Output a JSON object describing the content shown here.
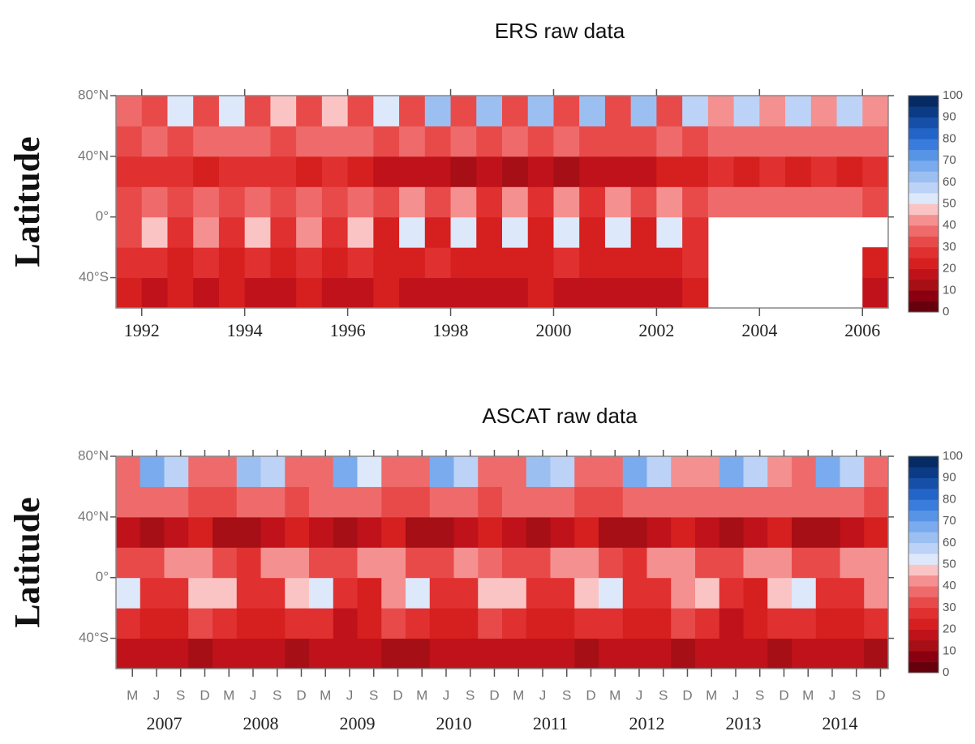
{
  "chart_data": [
    {
      "type": "heatmap",
      "title": "ERS raw data",
      "ylabel": "Latitude",
      "xlim": [
        1991.5,
        2006.5
      ],
      "ylim": [
        -60,
        80
      ],
      "xticks": [
        1992,
        1994,
        1996,
        1998,
        2000,
        2002,
        2004,
        2006
      ],
      "yticks": [
        {
          "value": 80,
          "label": "80°N"
        },
        {
          "value": 40,
          "label": "40°N"
        },
        {
          "value": 0,
          "label": "0°"
        },
        {
          "value": -40,
          "label": "40°S"
        }
      ],
      "xbins": [
        1991.5,
        1992,
        1992.5,
        1993,
        1993.5,
        1994,
        1994.5,
        1995,
        1995.5,
        1996,
        1996.5,
        1997,
        1997.5,
        1998,
        1998.5,
        1999,
        1999.5,
        2000,
        2000.5,
        2001,
        2001.5,
        2002,
        2002.5,
        2003,
        2003.5,
        2004,
        2004.5,
        2005,
        2005.5,
        2006,
        2006.5
      ],
      "ybins": [
        -60,
        -40,
        -20,
        0,
        20,
        40,
        60,
        80
      ],
      "values": [
        [
          22,
          18,
          20,
          17,
          21,
          19,
          18,
          20,
          17,
          19,
          21,
          18,
          16,
          19,
          18,
          17,
          20,
          16,
          18,
          19,
          17,
          18,
          20,
          null,
          null,
          null,
          null,
          null,
          null,
          15
        ],
        [
          25,
          28,
          22,
          27,
          24,
          26,
          23,
          25,
          22,
          27,
          24,
          21,
          25,
          23,
          22,
          24,
          21,
          26,
          23,
          20,
          24,
          22,
          25,
          null,
          null,
          null,
          null,
          null,
          null,
          22
        ],
        [
          30,
          45,
          28,
          44,
          27,
          45,
          26,
          44,
          25,
          46,
          24,
          50,
          22,
          52,
          23,
          50,
          22,
          51,
          22,
          52,
          24,
          50,
          26,
          null,
          null,
          null,
          null,
          null,
          null,
          null
        ],
        [
          30,
          38,
          32,
          36,
          30,
          37,
          31,
          36,
          30,
          38,
          33,
          40,
          30,
          41,
          29,
          40,
          28,
          41,
          29,
          42,
          30,
          40,
          31,
          36,
          38,
          36,
          37,
          35,
          36,
          33
        ],
        [
          28,
          25,
          27,
          24,
          26,
          25,
          27,
          24,
          25,
          22,
          18,
          15,
          17,
          14,
          16,
          13,
          15,
          14,
          17,
          15,
          18,
          20,
          22,
          25,
          24,
          26,
          23,
          25,
          24,
          26
        ],
        [
          34,
          36,
          33,
          37,
          35,
          36,
          34,
          38,
          35,
          37,
          33,
          36,
          32,
          35,
          33,
          36,
          34,
          35,
          32,
          34,
          33,
          35,
          34,
          38,
          36,
          37,
          35,
          38,
          36,
          37
        ],
        [
          35,
          30,
          52,
          32,
          50,
          30,
          48,
          31,
          47,
          30,
          50,
          32,
          60,
          33,
          60,
          32,
          62,
          33,
          60,
          32,
          62,
          33,
          58,
          42,
          55,
          40,
          57,
          41,
          56,
          40
        ]
      ],
      "clim": [
        0,
        100
      ],
      "colors": [
        "#67000d",
        "#8b0010",
        "#a50f15",
        "#c0121a",
        "#d61f1f",
        "#e03030",
        "#e84a4a",
        "#ef6b6b",
        "#f59090",
        "#fbc4c4",
        "#dde8fb",
        "#bcd3f7",
        "#9cbff2",
        "#7aabee",
        "#5894e6",
        "#3a7cdc",
        "#2264c8",
        "#164fa8",
        "#0c3b86",
        "#062a62"
      ],
      "colorbar_ticks": [
        0,
        10,
        20,
        30,
        40,
        50,
        60,
        70,
        80,
        90,
        100
      ]
    },
    {
      "type": "heatmap",
      "title": "ASCAT raw data",
      "ylabel": "Latitude",
      "xlim": [
        2007,
        2015
      ],
      "ylim": [
        -60,
        80
      ],
      "xticks": [
        {
          "value": 2007.17,
          "label": "M"
        },
        {
          "value": 2007.42,
          "label": "J"
        },
        {
          "value": 2007.67,
          "label": "S"
        },
        {
          "value": 2007.92,
          "label": "D"
        },
        {
          "value": 2008.17,
          "label": "M"
        },
        {
          "value": 2008.42,
          "label": "J"
        },
        {
          "value": 2008.67,
          "label": "S"
        },
        {
          "value": 2008.92,
          "label": "D"
        },
        {
          "value": 2009.17,
          "label": "M"
        },
        {
          "value": 2009.42,
          "label": "J"
        },
        {
          "value": 2009.67,
          "label": "S"
        },
        {
          "value": 2009.92,
          "label": "D"
        },
        {
          "value": 2010.17,
          "label": "M"
        },
        {
          "value": 2010.42,
          "label": "J"
        },
        {
          "value": 2010.67,
          "label": "S"
        },
        {
          "value": 2010.92,
          "label": "D"
        },
        {
          "value": 2011.17,
          "label": "M"
        },
        {
          "value": 2011.42,
          "label": "J"
        },
        {
          "value": 2011.67,
          "label": "S"
        },
        {
          "value": 2011.92,
          "label": "D"
        },
        {
          "value": 2012.17,
          "label": "M"
        },
        {
          "value": 2012.42,
          "label": "J"
        },
        {
          "value": 2012.67,
          "label": "S"
        },
        {
          "value": 2012.92,
          "label": "D"
        },
        {
          "value": 2013.17,
          "label": "M"
        },
        {
          "value": 2013.42,
          "label": "J"
        },
        {
          "value": 2013.67,
          "label": "S"
        },
        {
          "value": 2013.92,
          "label": "D"
        },
        {
          "value": 2014.17,
          "label": "M"
        },
        {
          "value": 2014.42,
          "label": "J"
        },
        {
          "value": 2014.67,
          "label": "S"
        },
        {
          "value": 2014.92,
          "label": "D"
        }
      ],
      "year_ticks": [
        {
          "value": 2007.5,
          "label": "2007"
        },
        {
          "value": 2008.5,
          "label": "2008"
        },
        {
          "value": 2009.5,
          "label": "2009"
        },
        {
          "value": 2010.5,
          "label": "2010"
        },
        {
          "value": 2011.5,
          "label": "2011"
        },
        {
          "value": 2012.5,
          "label": "2012"
        },
        {
          "value": 2013.5,
          "label": "2013"
        },
        {
          "value": 2014.5,
          "label": "2014"
        }
      ],
      "yticks": [
        {
          "value": 80,
          "label": "80°N"
        },
        {
          "value": 40,
          "label": "40°N"
        },
        {
          "value": 0,
          "label": "0°"
        },
        {
          "value": -40,
          "label": "40°S"
        }
      ],
      "xbins": [
        2007,
        2007.25,
        2007.5,
        2007.75,
        2008,
        2008.25,
        2008.5,
        2008.75,
        2009,
        2009.25,
        2009.5,
        2009.75,
        2010,
        2010.25,
        2010.5,
        2010.75,
        2011,
        2011.25,
        2011.5,
        2011.75,
        2012,
        2012.25,
        2012.5,
        2012.75,
        2013,
        2013.25,
        2013.5,
        2013.75,
        2014,
        2014.25,
        2014.5,
        2014.75,
        2015
      ],
      "ybins": [
        -60,
        -40,
        -20,
        0,
        20,
        40,
        60,
        80
      ],
      "values": [
        [
          15,
          18,
          16,
          14,
          16,
          17,
          15,
          13,
          15,
          18,
          16,
          14,
          14,
          17,
          16,
          15,
          16,
          18,
          15,
          14,
          15,
          17,
          16,
          13,
          15,
          18,
          17,
          14,
          16,
          17,
          15,
          14
        ],
        [
          28,
          20,
          22,
          30,
          27,
          21,
          23,
          29,
          28,
          19,
          22,
          31,
          26,
          20,
          24,
          30,
          27,
          21,
          22,
          29,
          28,
          20,
          23,
          30,
          27,
          19,
          22,
          28,
          26,
          21,
          24,
          29
        ],
        [
          50,
          28,
          25,
          45,
          49,
          27,
          26,
          46,
          51,
          28,
          24,
          44,
          50,
          27,
          25,
          45,
          48,
          28,
          26,
          46,
          50,
          27,
          25,
          44,
          49,
          28,
          24,
          45,
          50,
          27,
          26,
          44
        ],
        [
          32,
          30,
          42,
          40,
          31,
          29,
          43,
          41,
          33,
          30,
          42,
          40,
          32,
          31,
          43,
          39,
          31,
          30,
          42,
          41,
          33,
          29,
          43,
          40,
          32,
          30,
          42,
          41,
          31,
          30,
          41,
          40
        ],
        [
          15,
          12,
          18,
          22,
          14,
          13,
          19,
          21,
          15,
          11,
          18,
          22,
          13,
          12,
          17,
          21,
          15,
          12,
          19,
          22,
          14,
          13,
          18,
          21,
          15,
          12,
          18,
          22,
          14,
          13,
          19,
          22
        ],
        [
          35,
          38,
          36,
          33,
          34,
          39,
          36,
          32,
          35,
          38,
          37,
          33,
          34,
          38,
          36,
          34,
          35,
          39,
          36,
          33,
          34,
          38,
          37,
          38,
          36,
          39,
          37,
          38,
          35,
          38,
          36,
          34
        ],
        [
          35,
          65,
          55,
          38,
          36,
          64,
          56,
          37,
          35,
          66,
          54,
          38,
          36,
          65,
          55,
          37,
          35,
          64,
          56,
          38,
          36,
          65,
          55,
          42,
          40,
          66,
          56,
          42,
          38,
          65,
          55,
          38
        ]
      ],
      "clim": [
        0,
        100
      ],
      "colors": [
        "#67000d",
        "#8b0010",
        "#a50f15",
        "#c0121a",
        "#d61f1f",
        "#e03030",
        "#e84a4a",
        "#ef6b6b",
        "#f59090",
        "#fbc4c4",
        "#dde8fb",
        "#bcd3f7",
        "#9cbff2",
        "#7aabee",
        "#5894e6",
        "#3a7cdc",
        "#2264c8",
        "#164fa8",
        "#0c3b86",
        "#062a62"
      ],
      "colorbar_ticks": [
        0,
        10,
        20,
        30,
        40,
        50,
        60,
        70,
        80,
        90,
        100
      ]
    }
  ]
}
